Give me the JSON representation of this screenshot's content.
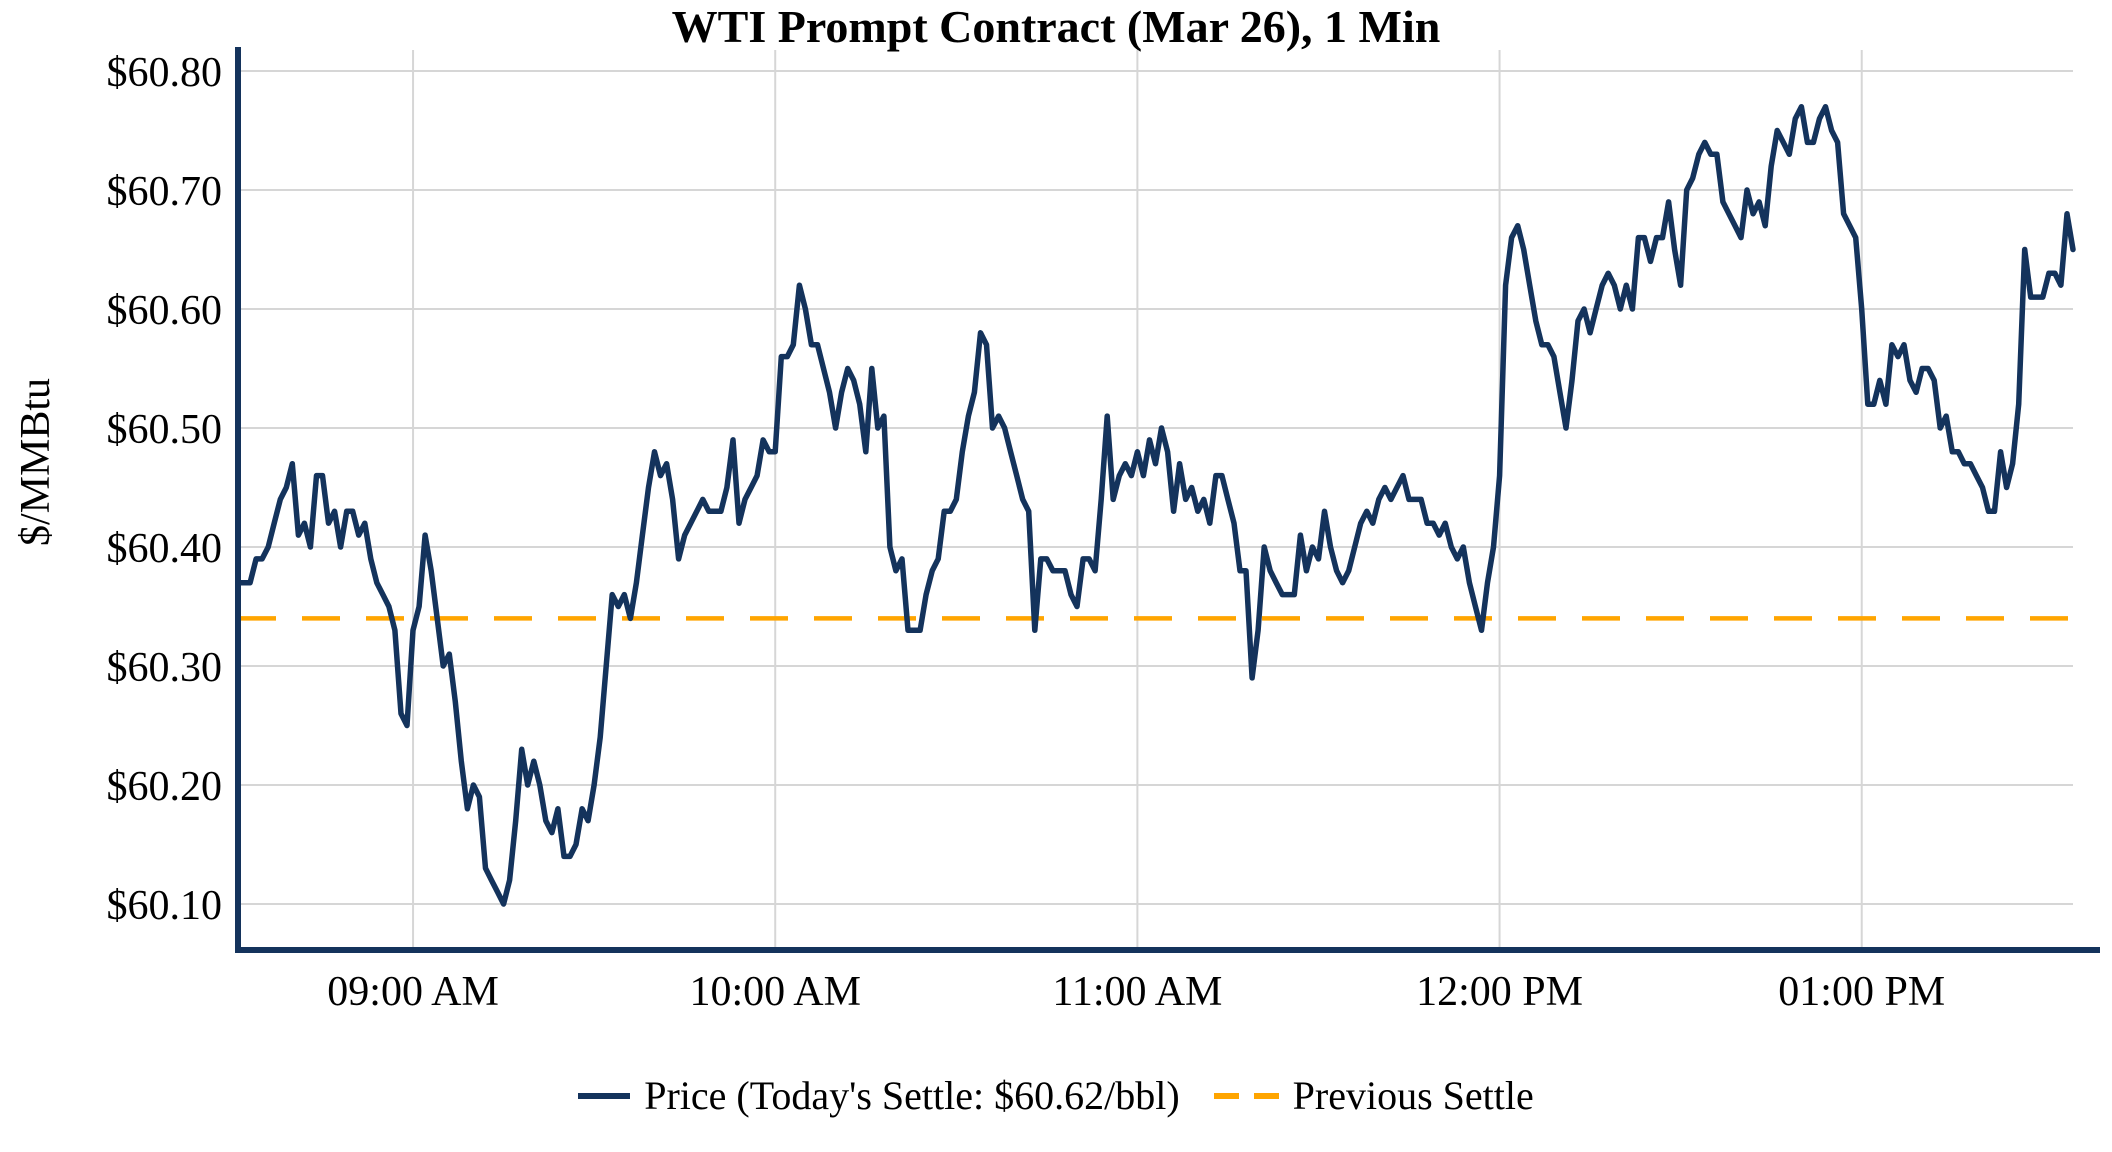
{
  "title": "WTI Prompt Contract (Mar 26), 1 Min",
  "chart_data": {
    "type": "line",
    "title": "WTI Prompt Contract (Mar 26), 1 Min",
    "xlabel": "",
    "ylabel": "$/MMBtu",
    "x_start_time": "08:31 AM",
    "x_end_time": "01:35 PM",
    "x_interval_minutes": 1,
    "x_ticks": [
      {
        "label": "09:00 AM",
        "index": 29
      },
      {
        "label": "10:00 AM",
        "index": 89
      },
      {
        "label": "11:00 AM",
        "index": 149
      },
      {
        "label": "12:00 PM",
        "index": 209
      },
      {
        "label": "01:00 PM",
        "index": 269
      }
    ],
    "y_ticks": [
      {
        "label": "$60.80",
        "value": 60.8
      },
      {
        "label": "$60.70",
        "value": 60.7
      },
      {
        "label": "$60.60",
        "value": 60.6
      },
      {
        "label": "$60.50",
        "value": 60.5
      },
      {
        "label": "$60.40",
        "value": 60.4
      },
      {
        "label": "$60.30",
        "value": 60.3
      },
      {
        "label": "$60.20",
        "value": 60.2
      },
      {
        "label": "$60.10",
        "value": 60.1
      }
    ],
    "ylim": [
      60.06,
      60.82
    ],
    "grid": true,
    "legend_position": "bottom",
    "today_settle": 60.62,
    "previous_settle": 60.34,
    "series": [
      {
        "name": "Price (Today's Settle: $60.62/bbl)",
        "type": "line",
        "style": "solid",
        "color": "#14335C",
        "values": [
          60.37,
          60.37,
          60.37,
          60.39,
          60.39,
          60.4,
          60.42,
          60.44,
          60.45,
          60.47,
          60.41,
          60.42,
          60.4,
          60.46,
          60.46,
          60.42,
          60.43,
          60.4,
          60.43,
          60.43,
          60.41,
          60.42,
          60.39,
          60.37,
          60.36,
          60.35,
          60.33,
          60.26,
          60.25,
          60.33,
          60.35,
          60.41,
          60.38,
          60.34,
          60.3,
          60.31,
          60.27,
          60.22,
          60.18,
          60.2,
          60.19,
          60.13,
          60.12,
          60.11,
          60.1,
          60.12,
          60.17,
          60.23,
          60.2,
          60.22,
          60.2,
          60.17,
          60.16,
          60.18,
          60.14,
          60.14,
          60.15,
          60.18,
          60.17,
          60.2,
          60.24,
          60.3,
          60.36,
          60.35,
          60.36,
          60.34,
          60.37,
          60.41,
          60.45,
          60.48,
          60.46,
          60.47,
          60.44,
          60.39,
          60.41,
          60.42,
          60.43,
          60.44,
          60.43,
          60.43,
          60.43,
          60.45,
          60.49,
          60.42,
          60.44,
          60.45,
          60.46,
          60.49,
          60.48,
          60.48,
          60.56,
          60.56,
          60.57,
          60.62,
          60.6,
          60.57,
          60.57,
          60.55,
          60.53,
          60.5,
          60.53,
          60.55,
          60.54,
          60.52,
          60.48,
          60.55,
          60.5,
          60.51,
          60.4,
          60.38,
          60.39,
          60.33,
          60.33,
          60.33,
          60.36,
          60.38,
          60.39,
          60.43,
          60.43,
          60.44,
          60.48,
          60.51,
          60.53,
          60.58,
          60.57,
          60.5,
          60.51,
          60.5,
          60.48,
          60.46,
          60.44,
          60.43,
          60.33,
          60.39,
          60.39,
          60.38,
          60.38,
          60.38,
          60.36,
          60.35,
          60.39,
          60.39,
          60.38,
          60.44,
          60.51,
          60.44,
          60.46,
          60.47,
          60.46,
          60.48,
          60.46,
          60.49,
          60.47,
          60.5,
          60.48,
          60.43,
          60.47,
          60.44,
          60.45,
          60.43,
          60.44,
          60.42,
          60.46,
          60.46,
          60.44,
          60.42,
          60.38,
          60.38,
          60.29,
          60.33,
          60.4,
          60.38,
          60.37,
          60.36,
          60.36,
          60.36,
          60.41,
          60.38,
          60.4,
          60.39,
          60.43,
          60.4,
          60.38,
          60.37,
          60.38,
          60.4,
          60.42,
          60.43,
          60.42,
          60.44,
          60.45,
          60.44,
          60.45,
          60.46,
          60.44,
          60.44,
          60.44,
          60.42,
          60.42,
          60.41,
          60.42,
          60.4,
          60.39,
          60.4,
          60.37,
          60.35,
          60.33,
          60.37,
          60.4,
          60.46,
          60.62,
          60.66,
          60.67,
          60.65,
          60.62,
          60.59,
          60.57,
          60.57,
          60.56,
          60.53,
          60.5,
          60.54,
          60.59,
          60.6,
          60.58,
          60.6,
          60.62,
          60.63,
          60.62,
          60.6,
          60.62,
          60.6,
          60.66,
          60.66,
          60.64,
          60.66,
          60.66,
          60.69,
          60.65,
          60.62,
          60.7,
          60.71,
          60.73,
          60.74,
          60.73,
          60.73,
          60.69,
          60.68,
          60.67,
          60.66,
          60.7,
          60.68,
          60.69,
          60.67,
          60.72,
          60.75,
          60.74,
          60.73,
          60.76,
          60.77,
          60.74,
          60.74,
          60.76,
          60.77,
          60.75,
          60.74,
          60.68,
          60.67,
          60.66,
          60.6,
          60.52,
          60.52,
          60.54,
          60.52,
          60.57,
          60.56,
          60.57,
          60.54,
          60.53,
          60.55,
          60.55,
          60.54,
          60.5,
          60.51,
          60.48,
          60.48,
          60.47,
          60.47,
          60.46,
          60.45,
          60.43,
          60.43,
          60.48,
          60.45,
          60.47,
          60.52,
          60.65,
          60.61,
          60.61,
          60.61,
          60.63,
          60.63,
          60.62,
          60.68,
          60.65
        ]
      },
      {
        "name": "Previous Settle",
        "type": "hline",
        "style": "dashed",
        "color": "#FFA500",
        "value": 60.34
      }
    ]
  }
}
